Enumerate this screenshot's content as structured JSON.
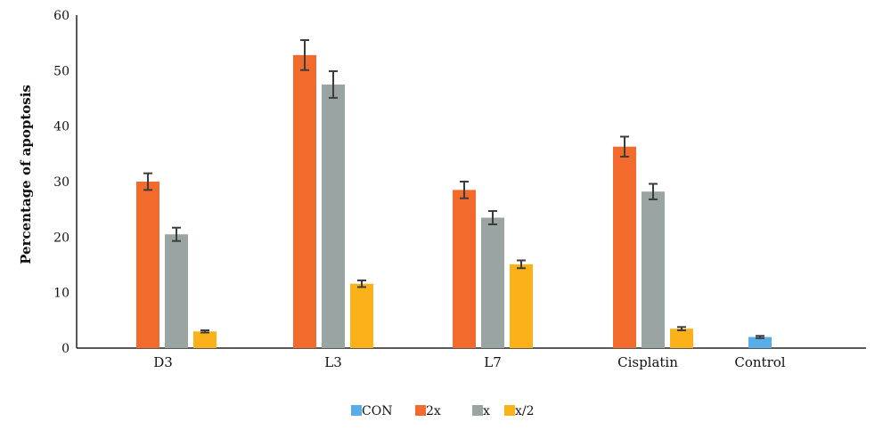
{
  "chart_data": {
    "type": "bar",
    "title": "",
    "xlabel": "",
    "ylabel": "Percentage of apoptosis",
    "ylim": [
      0,
      60
    ],
    "yticks": [
      0,
      10,
      20,
      30,
      40,
      50,
      60
    ],
    "grid": false,
    "legend_position": "bottom",
    "categories": [
      "D3",
      "L3",
      "L7",
      "Cisplatin",
      "Control"
    ],
    "series": [
      {
        "name": "CON",
        "color": "#5aace6",
        "values": [
          null,
          null,
          null,
          null,
          2.0
        ],
        "errors": [
          null,
          null,
          null,
          null,
          0.2
        ]
      },
      {
        "name": "2x",
        "color": "#f36b2c",
        "values": [
          30.0,
          52.8,
          28.5,
          36.3,
          null
        ],
        "errors": [
          1.5,
          2.7,
          1.5,
          1.8,
          null
        ]
      },
      {
        "name": "x",
        "color": "#9aa5a3",
        "values": [
          20.5,
          47.5,
          23.5,
          28.2,
          null
        ],
        "errors": [
          1.2,
          2.4,
          1.2,
          1.4,
          null
        ]
      },
      {
        "name": "x/2",
        "color": "#fbb21a",
        "values": [
          3.0,
          11.6,
          15.1,
          3.5,
          null
        ],
        "errors": [
          0.2,
          0.6,
          0.7,
          0.3,
          null
        ]
      }
    ]
  }
}
